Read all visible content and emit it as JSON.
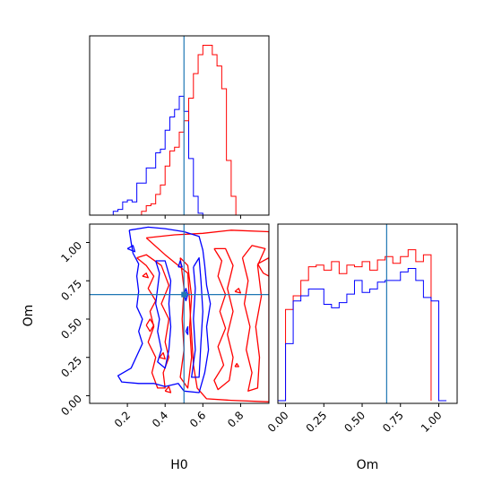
{
  "chart_data": {
    "type": "corner-plot",
    "colors": {
      "series_a": "#0000ff",
      "series_b": "#ff0000",
      "truth": "#1f77b4",
      "axes": "#000000"
    },
    "truth": {
      "H0": 0.5,
      "Om": 0.66
    },
    "panels": {
      "h0_hist": {
        "type": "histogram",
        "xlim": [
          0.0,
          0.95
        ],
        "xticks": [
          0.2,
          0.4,
          0.6,
          0.8
        ],
        "bin_width": 0.025,
        "series_a": {
          "bin_start": 0.125,
          "counts": [
            0.02,
            0.03,
            0.07,
            0.08,
            0.07,
            0.17,
            0.17,
            0.25,
            0.25,
            0.33,
            0.35,
            0.45,
            0.52,
            0.56,
            0.63,
            0.55,
            0.3,
            0.1,
            0.01
          ]
        },
        "series_b": {
          "bin_start": 0.275,
          "counts": [
            0.02,
            0.05,
            0.06,
            0.11,
            0.16,
            0.26,
            0.34,
            0.36,
            0.44,
            0.5,
            0.62,
            0.75,
            0.85,
            0.9,
            0.9,
            0.85,
            0.79,
            0.67,
            0.29,
            0.1
          ]
        },
        "ymax": 0.95
      },
      "h0_om_contour": {
        "type": "contour",
        "xlim": [
          0.0,
          0.95
        ],
        "ylim": [
          -0.05,
          1.12
        ],
        "xlabel": "H0",
        "ylabel": "Om",
        "xticks": [
          "0.2",
          "0.4",
          "0.6",
          "0.8"
        ],
        "yticks": [
          "0.00",
          "0.25",
          "0.50",
          "0.75",
          "1.00"
        ],
        "series_a_contours": [
          [
            [
              0.21,
              1.08
            ],
            [
              0.31,
              1.1
            ],
            [
              0.4,
              1.09
            ],
            [
              0.5,
              1.07
            ],
            [
              0.58,
              1.04
            ],
            [
              0.6,
              0.95
            ],
            [
              0.61,
              0.85
            ],
            [
              0.62,
              0.72
            ],
            [
              0.64,
              0.6
            ],
            [
              0.62,
              0.45
            ],
            [
              0.63,
              0.3
            ],
            [
              0.61,
              0.15
            ],
            [
              0.58,
              0.02
            ],
            [
              0.5,
              0.03
            ],
            [
              0.47,
              0.08
            ],
            [
              0.4,
              0.06
            ],
            [
              0.34,
              0.08
            ],
            [
              0.26,
              0.08
            ],
            [
              0.17,
              0.09
            ],
            [
              0.15,
              0.13
            ],
            [
              0.22,
              0.18
            ],
            [
              0.25,
              0.26
            ],
            [
              0.28,
              0.34
            ],
            [
              0.26,
              0.42
            ],
            [
              0.28,
              0.5
            ],
            [
              0.25,
              0.58
            ],
            [
              0.26,
              0.68
            ],
            [
              0.25,
              0.78
            ],
            [
              0.26,
              0.86
            ],
            [
              0.23,
              0.93
            ],
            [
              0.22,
              1.0
            ],
            [
              0.21,
              1.08
            ]
          ],
          [
            [
              0.35,
              0.88
            ],
            [
              0.37,
              0.8
            ],
            [
              0.36,
              0.7
            ],
            [
              0.35,
              0.6
            ],
            [
              0.37,
              0.5
            ],
            [
              0.36,
              0.42
            ],
            [
              0.38,
              0.3
            ],
            [
              0.36,
              0.22
            ],
            [
              0.4,
              0.18
            ],
            [
              0.42,
              0.3
            ],
            [
              0.43,
              0.45
            ],
            [
              0.42,
              0.6
            ],
            [
              0.43,
              0.75
            ],
            [
              0.4,
              0.88
            ],
            [
              0.35,
              0.88
            ]
          ],
          [
            [
              0.55,
              0.84
            ],
            [
              0.56,
              0.7
            ],
            [
              0.55,
              0.5
            ],
            [
              0.56,
              0.3
            ],
            [
              0.54,
              0.12
            ],
            [
              0.58,
              0.12
            ],
            [
              0.59,
              0.35
            ],
            [
              0.6,
              0.55
            ],
            [
              0.59,
              0.75
            ],
            [
              0.58,
              0.9
            ],
            [
              0.55,
              0.84
            ]
          ],
          [
            [
              0.2,
              0.96
            ],
            [
              0.23,
              0.98
            ],
            [
              0.24,
              0.94
            ],
            [
              0.2,
              0.96
            ]
          ],
          [
            [
              0.47,
              0.84
            ],
            [
              0.48,
              0.88
            ],
            [
              0.49,
              0.84
            ],
            [
              0.47,
              0.84
            ]
          ],
          [
            [
              0.5,
              0.66
            ],
            [
              0.51,
              0.7
            ],
            [
              0.52,
              0.66
            ],
            [
              0.51,
              0.62
            ],
            [
              0.5,
              0.66
            ]
          ],
          [
            [
              0.51,
              0.42
            ],
            [
              0.52,
              0.45
            ],
            [
              0.52,
              0.4
            ],
            [
              0.51,
              0.42
            ]
          ]
        ],
        "series_b_contours": [
          [
            [
              0.3,
              1.03
            ],
            [
              0.45,
              1.05
            ],
            [
              0.6,
              1.06
            ],
            [
              0.75,
              1.08
            ],
            [
              0.95,
              1.07
            ],
            [
              0.95,
              -0.04
            ],
            [
              0.75,
              -0.03
            ],
            [
              0.62,
              -0.02
            ],
            [
              0.57,
              0.05
            ],
            [
              0.55,
              0.2
            ],
            [
              0.54,
              0.4
            ],
            [
              0.53,
              0.6
            ],
            [
              0.52,
              0.8
            ],
            [
              0.4,
              0.92
            ],
            [
              0.3,
              1.03
            ]
          ],
          [
            [
              0.25,
              0.9
            ],
            [
              0.3,
              0.85
            ],
            [
              0.34,
              0.78
            ],
            [
              0.31,
              0.7
            ],
            [
              0.35,
              0.62
            ],
            [
              0.32,
              0.55
            ],
            [
              0.34,
              0.45
            ],
            [
              0.31,
              0.35
            ],
            [
              0.35,
              0.25
            ],
            [
              0.33,
              0.15
            ],
            [
              0.36,
              0.05
            ],
            [
              0.4,
              0.05
            ],
            [
              0.39,
              0.15
            ],
            [
              0.42,
              0.25
            ],
            [
              0.4,
              0.35
            ],
            [
              0.42,
              0.5
            ],
            [
              0.38,
              0.6
            ],
            [
              0.42,
              0.72
            ],
            [
              0.38,
              0.85
            ],
            [
              0.3,
              0.92
            ],
            [
              0.25,
              0.9
            ]
          ],
          [
            [
              0.48,
              0.9
            ],
            [
              0.5,
              0.7
            ],
            [
              0.49,
              0.5
            ],
            [
              0.5,
              0.3
            ],
            [
              0.48,
              0.12
            ],
            [
              0.52,
              0.05
            ],
            [
              0.54,
              0.25
            ],
            [
              0.53,
              0.45
            ],
            [
              0.54,
              0.65
            ],
            [
              0.52,
              0.85
            ],
            [
              0.48,
              0.9
            ]
          ],
          [
            [
              0.66,
              0.96
            ],
            [
              0.7,
              0.88
            ],
            [
              0.68,
              0.78
            ],
            [
              0.72,
              0.66
            ],
            [
              0.69,
              0.55
            ],
            [
              0.72,
              0.44
            ],
            [
              0.68,
              0.32
            ],
            [
              0.71,
              0.2
            ],
            [
              0.66,
              0.1
            ],
            [
              0.68,
              0.04
            ],
            [
              0.74,
              0.1
            ],
            [
              0.76,
              0.25
            ],
            [
              0.73,
              0.4
            ],
            [
              0.76,
              0.55
            ],
            [
              0.73,
              0.7
            ],
            [
              0.76,
              0.85
            ],
            [
              0.72,
              0.96
            ],
            [
              0.66,
              0.96
            ]
          ],
          [
            [
              0.81,
              0.9
            ],
            [
              0.84,
              0.75
            ],
            [
              0.82,
              0.6
            ],
            [
              0.85,
              0.45
            ],
            [
              0.83,
              0.3
            ],
            [
              0.86,
              0.15
            ],
            [
              0.84,
              0.03
            ],
            [
              0.89,
              0.05
            ],
            [
              0.9,
              0.25
            ],
            [
              0.88,
              0.45
            ],
            [
              0.91,
              0.65
            ],
            [
              0.89,
              0.85
            ],
            [
              0.93,
              0.96
            ],
            [
              0.86,
              0.98
            ],
            [
              0.81,
              0.9
            ]
          ],
          [
            [
              0.89,
              0.86
            ],
            [
              0.92,
              0.8
            ],
            [
              0.95,
              0.78
            ],
            [
              0.95,
              0.9
            ],
            [
              0.89,
              0.86
            ]
          ],
          [
            [
              0.3,
              0.46
            ],
            [
              0.32,
              0.5
            ],
            [
              0.34,
              0.46
            ],
            [
              0.32,
              0.42
            ],
            [
              0.3,
              0.46
            ]
          ],
          [
            [
              0.37,
              0.25
            ],
            [
              0.39,
              0.28
            ],
            [
              0.4,
              0.24
            ],
            [
              0.37,
              0.25
            ]
          ],
          [
            [
              0.4,
              0.03
            ],
            [
              0.42,
              0.06
            ],
            [
              0.43,
              0.02
            ],
            [
              0.4,
              0.03
            ]
          ],
          [
            [
              0.77,
              0.19
            ],
            [
              0.78,
              0.21
            ],
            [
              0.79,
              0.19
            ],
            [
              0.77,
              0.19
            ]
          ],
          [
            [
              0.77,
              0.68
            ],
            [
              0.79,
              0.7
            ],
            [
              0.8,
              0.67
            ],
            [
              0.77,
              0.68
            ]
          ],
          [
            [
              0.28,
              0.78
            ],
            [
              0.3,
              0.8
            ],
            [
              0.31,
              0.77
            ],
            [
              0.28,
              0.78
            ]
          ]
        ]
      },
      "om_hist": {
        "type": "histogram",
        "xlim": [
          -0.05,
          1.12
        ],
        "xlabel": "Om",
        "xticks": [
          "0.00",
          "0.25",
          "0.50",
          "0.75",
          "1.00"
        ],
        "bin_width": 0.05,
        "bin_start": 0.0,
        "series_a": {
          "counts": [
            0.35,
            0.6,
            0.63,
            0.67,
            0.67,
            0.58,
            0.56,
            0.59,
            0.64,
            0.72,
            0.65,
            0.67,
            0.71,
            0.72,
            0.72,
            0.77,
            0.79,
            0.72,
            0.62,
            0.6
          ],
          "edge_left": 0.05,
          "edge_right": 0.05
        },
        "series_b": {
          "counts": [
            0.55,
            0.63,
            0.72,
            0.8,
            0.81,
            0.78,
            0.83,
            0.76,
            0.81,
            0.8,
            0.83,
            0.78,
            0.84,
            0.86,
            0.82,
            0.86,
            0.9,
            0.83,
            0.87
          ],
          "edge_left": 0.05,
          "edge_right": 0.05
        },
        "ymax": 1.05
      }
    }
  }
}
